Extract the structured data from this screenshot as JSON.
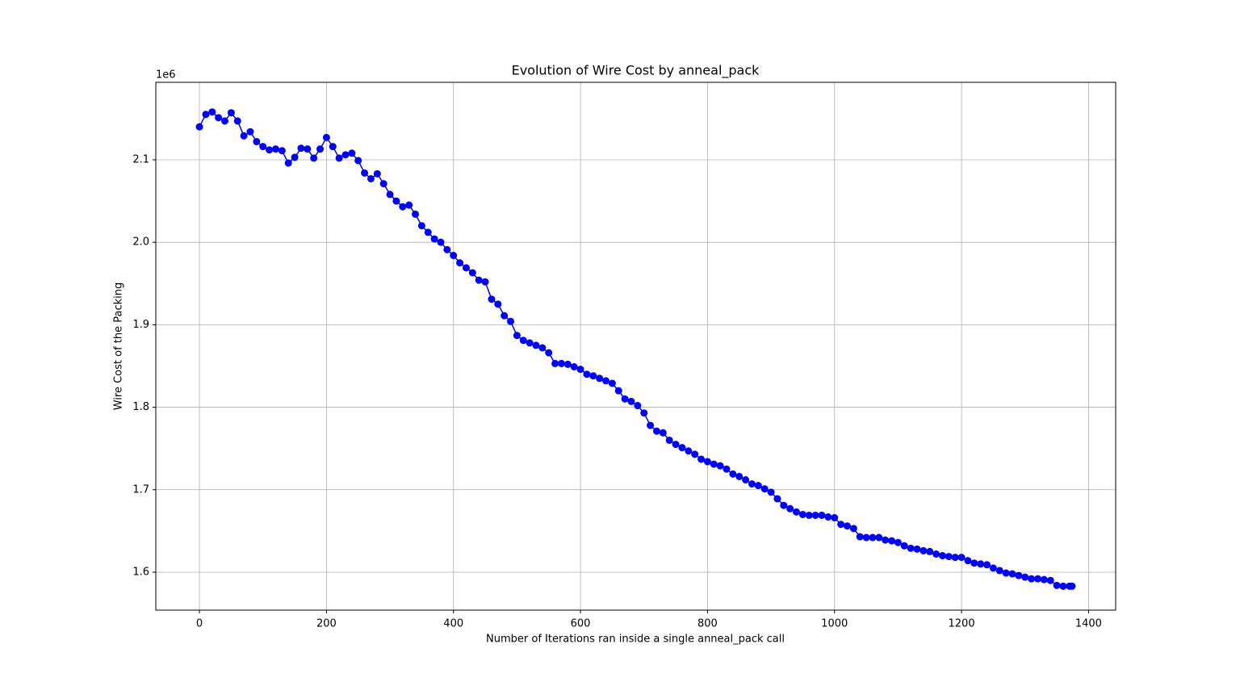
{
  "chart_data": {
    "type": "line",
    "title": "Evolution of Wire Cost by anneal_pack",
    "xlabel": "Number of Iterations ran inside a single anneal_pack call",
    "ylabel": "Wire Cost of the Packing",
    "y_offset_label": "1e6",
    "grid": true,
    "marker": "o",
    "x": [
      0,
      10,
      20,
      30,
      40,
      50,
      60,
      70,
      80,
      90,
      100,
      110,
      120,
      130,
      140,
      150,
      160,
      170,
      180,
      190,
      200,
      210,
      220,
      230,
      240,
      250,
      260,
      270,
      280,
      290,
      300,
      310,
      320,
      330,
      340,
      350,
      360,
      370,
      380,
      390,
      400,
      410,
      420,
      430,
      440,
      450,
      460,
      470,
      480,
      490,
      500,
      510,
      520,
      530,
      540,
      550,
      560,
      570,
      580,
      590,
      600,
      610,
      620,
      630,
      640,
      650,
      660,
      670,
      680,
      690,
      700,
      710,
      720,
      730,
      740,
      750,
      760,
      770,
      780,
      790,
      800,
      810,
      820,
      830,
      840,
      850,
      860,
      870,
      880,
      890,
      900,
      910,
      920,
      930,
      940,
      950,
      960,
      970,
      980,
      990,
      1000,
      1010,
      1020,
      1030,
      1040,
      1050,
      1060,
      1070,
      1080,
      1090,
      1100,
      1110,
      1120,
      1130,
      1140,
      1150,
      1160,
      1170,
      1180,
      1190,
      1200,
      1210,
      1220,
      1230,
      1240,
      1250,
      1260,
      1270,
      1280,
      1290,
      1300,
      1310,
      1320,
      1330,
      1340,
      1350,
      1360,
      1370,
      1374
    ],
    "series": [
      {
        "color": "#0000ff",
        "values": [
          2140000,
          2155000,
          2158000,
          2151000,
          2147000,
          2157000,
          2147000,
          2129000,
          2134000,
          2122000,
          2116000,
          2112000,
          2113000,
          2111000,
          2096000,
          2103000,
          2114000,
          2113000,
          2102000,
          2113000,
          2127000,
          2116000,
          2102000,
          2106000,
          2108000,
          2099000,
          2084000,
          2077000,
          2083000,
          2071000,
          2058000,
          2050000,
          2043000,
          2045000,
          2034000,
          2020000,
          2012000,
          2004000,
          2000000,
          1991000,
          1984000,
          1975000,
          1969000,
          1963000,
          1954000,
          1952000,
          1931000,
          1925000,
          1911000,
          1904000,
          1887000,
          1881000,
          1878000,
          1875000,
          1872000,
          1866000,
          1853000,
          1853000,
          1852000,
          1849000,
          1846000,
          1840000,
          1838000,
          1835000,
          1832000,
          1829000,
          1820000,
          1810000,
          1807000,
          1802000,
          1793000,
          1778000,
          1771000,
          1769000,
          1760000,
          1755000,
          1751000,
          1747000,
          1743000,
          1737000,
          1734000,
          1731000,
          1729000,
          1725000,
          1719000,
          1716000,
          1712000,
          1707000,
          1705000,
          1701000,
          1697000,
          1689000,
          1681000,
          1677000,
          1673000,
          1670000,
          1669000,
          1669000,
          1669000,
          1667000,
          1666000,
          1658000,
          1656000,
          1653000,
          1643000,
          1642000,
          1642000,
          1642000,
          1639000,
          1638000,
          1636000,
          1632000,
          1629000,
          1628000,
          1626000,
          1625000,
          1622000,
          1620000,
          1619000,
          1618000,
          1618000,
          1614000,
          1611000,
          1610000,
          1609000,
          1605000,
          1602000,
          1599000,
          1598000,
          1596000,
          1594000,
          1592000,
          1592000,
          1591000,
          1590000,
          1584000,
          1583000,
          1583000,
          1583000
        ]
      }
    ],
    "xlim": [
      -68.7,
      1442.7
    ],
    "xticks": [
      0,
      200,
      400,
      600,
      800,
      1000,
      1200,
      1400
    ],
    "ylim": [
      1554000,
      2193900
    ],
    "yticks": [
      {
        "value": 1600000,
        "label": "1.6"
      },
      {
        "value": 1700000,
        "label": "1.7"
      },
      {
        "value": 1800000,
        "label": "1.8"
      },
      {
        "value": 1900000,
        "label": "1.9"
      },
      {
        "value": 2000000,
        "label": "2.0"
      },
      {
        "value": 2100000,
        "label": "2.1"
      }
    ]
  }
}
